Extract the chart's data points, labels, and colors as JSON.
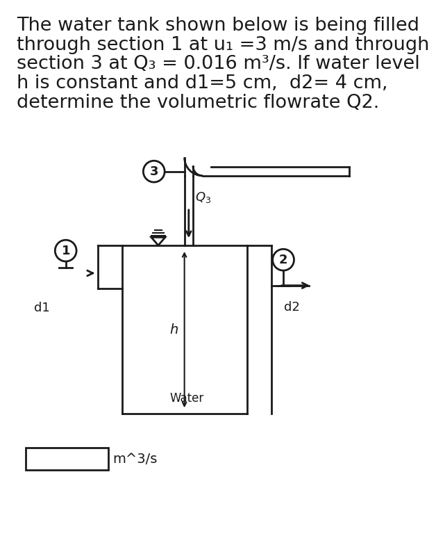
{
  "title_lines": [
    "The water tank shown below is being filled",
    "through section 1 at u₁ =3 m/s and through",
    "section 3 at Q₃ = 0.016 m³/s. If water level",
    "h is constant and d1=5 cm,  d2= 4 cm,",
    "determine the volumetric flowrate Q2."
  ],
  "answer_box_label": "m^3/s",
  "background_color": "#ffffff",
  "line_color": "#1a1a1a",
  "text_color": "#1a1a1a"
}
